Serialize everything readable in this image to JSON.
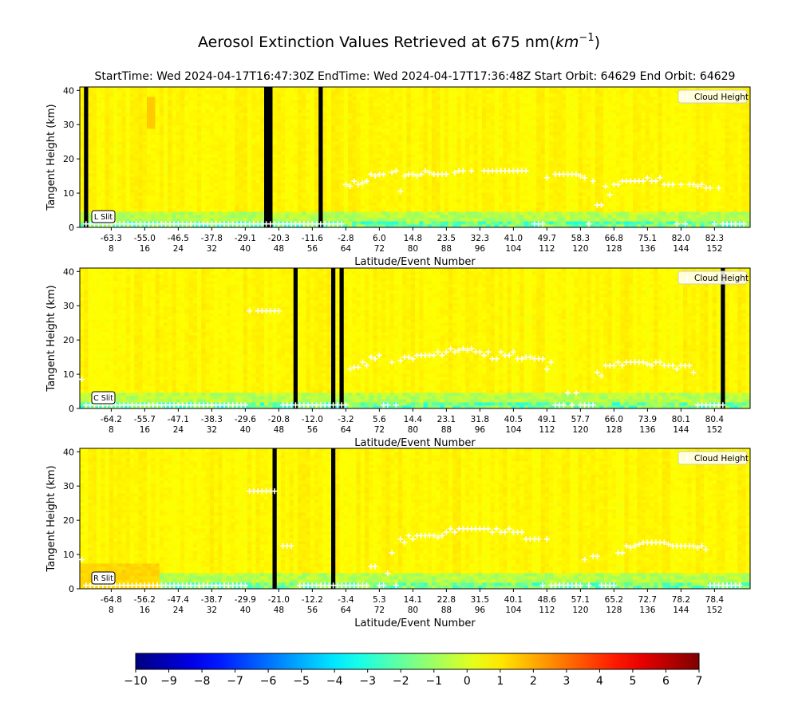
{
  "chart_data": {
    "type": "heatmap",
    "title": "Aerosol Extinction Values Retrieved at 675 nm(km⁻¹)",
    "title_main": "Aerosol Extinction Values Retrieved at 675 nm(",
    "title_unit": "km",
    "title_sup": "−1",
    "title_close": ")",
    "subtitle": "StartTime: Wed 2024-04-17T16:47:30Z  EndTime: Wed 2024-04-17T17:36:48Z  Start Orbit: 64629 End Orbit: 64629",
    "legend_label": "Cloud Height",
    "colorscale": "jet",
    "colorbar": {
      "min": -10,
      "max": 7,
      "ticks": [
        "−10",
        "−9",
        "−8",
        "−7",
        "−6",
        "−5",
        "−4",
        "−3",
        "−2",
        "−1",
        "0",
        "1",
        "2",
        "3",
        "4",
        "5",
        "6",
        "7"
      ]
    },
    "panels": [
      {
        "slit_label": "L Slit",
        "ylabel": "Tangent Height (km)",
        "xlabel": "Latitude/Event Number",
        "ylim": [
          0,
          41
        ],
        "yticks": [
          "0",
          "10",
          "20",
          "30",
          "40"
        ],
        "event_range": [
          1,
          160
        ],
        "xticks_lat": [
          "-63.3",
          "-55.0",
          "-46.5",
          "-37.8",
          "-29.1",
          "-20.3",
          "-11.6",
          "-2.8",
          "6.0",
          "14.8",
          "23.5",
          "32.3",
          "41.0",
          "49.7",
          "58.3",
          "66.8",
          "75.1",
          "82.0",
          "82.3"
        ],
        "xticks_event": [
          "8",
          "16",
          "24",
          "32",
          "40",
          "48",
          "56",
          "64",
          "72",
          "80",
          "88",
          "96",
          "104",
          "112",
          "120",
          "128",
          "136",
          "144",
          "152"
        ],
        "missing_events": [
          [
            2,
            2
          ],
          [
            45,
            46
          ],
          [
            58,
            58
          ]
        ],
        "cloud_height_events": [
          2,
          3,
          4,
          5,
          6,
          7,
          8,
          9,
          10,
          11,
          12,
          13,
          14,
          15,
          16,
          17,
          18,
          19,
          20,
          21,
          22,
          23,
          24,
          25,
          26,
          27,
          28,
          29,
          30,
          31,
          32,
          33,
          34,
          35,
          36,
          37,
          38,
          39,
          40,
          41,
          42,
          43,
          44,
          45,
          46,
          47,
          48,
          49,
          50,
          51,
          52,
          53,
          54,
          55,
          56,
          57,
          58,
          59,
          60,
          61,
          62,
          63,
          64,
          65,
          66,
          67,
          68,
          69,
          70,
          71,
          72,
          73,
          74,
          75,
          76,
          77,
          78,
          79,
          80,
          81,
          82,
          83,
          84,
          85,
          86,
          87,
          88,
          89,
          90,
          91,
          92,
          93,
          94,
          95,
          96,
          97,
          98,
          99,
          100,
          101,
          102,
          103,
          104,
          105,
          106,
          107,
          108,
          109,
          110,
          111,
          112,
          113,
          114,
          115,
          116,
          117,
          118,
          119,
          120,
          121,
          122,
          123,
          124,
          125,
          126,
          127,
          128,
          129,
          130,
          131,
          132,
          133,
          134,
          135,
          136,
          137,
          138,
          139,
          140,
          141,
          142,
          143,
          144,
          145,
          146,
          147,
          148,
          149,
          150,
          151,
          152,
          153,
          154,
          155,
          156,
          157,
          158,
          159
        ],
        "cloud_height_km": [
          1,
          1,
          1,
          1,
          1,
          1,
          1,
          1,
          1,
          1,
          1,
          1,
          1,
          1,
          1,
          1,
          1,
          1,
          1,
          1,
          1,
          1,
          1,
          1,
          1,
          1,
          1,
          1,
          1,
          1,
          1,
          1,
          1,
          1,
          1,
          1,
          1,
          1,
          1,
          1,
          1,
          1,
          1,
          1,
          1,
          1,
          1,
          1,
          1,
          1,
          1,
          1,
          1,
          1,
          1,
          1,
          1,
          1,
          1,
          1,
          1,
          1,
          12.5,
          12,
          13.5,
          12.5,
          13,
          13.5,
          15.5,
          15,
          15.5,
          15.5,
          null,
          16,
          16.5,
          10.5,
          15,
          15.5,
          15.5,
          15,
          15.5,
          16.5,
          16,
          15.5,
          15.5,
          15.5,
          15.5,
          null,
          16,
          16.5,
          16.5,
          null,
          16.5,
          null,
          null,
          16.5,
          16.5,
          16.5,
          16.5,
          16.5,
          16.5,
          16.5,
          16.5,
          16.5,
          16.5,
          16.5,
          null,
          1,
          1,
          1,
          14.5,
          null,
          15.5,
          15.5,
          15.5,
          15.5,
          15.5,
          15.5,
          15,
          14.5,
          1,
          13.5,
          6.5,
          6.5,
          12,
          9.5,
          12.5,
          12.5,
          13.5,
          13.5,
          13.5,
          13.5,
          13.5,
          13.5,
          14.5,
          13.5,
          13.5,
          14.5,
          12.5,
          12.5,
          12.5,
          1,
          12.5,
          1,
          12.5,
          12.5,
          12,
          12.5,
          11.5,
          11.5,
          1,
          11.5,
          1,
          1,
          1,
          1,
          1,
          1
        ]
      },
      {
        "slit_label": "C Slit",
        "ylabel": "Tangent Height (km)",
        "xlabel": "Latitude/Event Number",
        "ylim": [
          0,
          41
        ],
        "yticks": [
          "0",
          "10",
          "20",
          "30",
          "40"
        ],
        "event_range": [
          1,
          160
        ],
        "xticks_lat": [
          "-64.2",
          "-55.7",
          "-47.1",
          "-38.3",
          "-29.6",
          "-20.8",
          "-12.0",
          "-3.2",
          "5.6",
          "14.4",
          "23.1",
          "31.8",
          "40.5",
          "49.1",
          "57.7",
          "66.0",
          "73.9",
          "80.1",
          "80.4"
        ],
        "xticks_event": [
          "8",
          "16",
          "24",
          "32",
          "40",
          "48",
          "56",
          "64",
          "72",
          "80",
          "88",
          "96",
          "104",
          "112",
          "120",
          "128",
          "136",
          "144",
          "152"
        ],
        "missing_events": [
          [
            52,
            52
          ],
          [
            61,
            61
          ],
          [
            63,
            63
          ],
          [
            154,
            154
          ]
        ],
        "cloud_height_events": [
          1,
          2,
          3,
          4,
          5,
          6,
          7,
          8,
          9,
          10,
          11,
          12,
          13,
          14,
          15,
          16,
          17,
          18,
          19,
          20,
          21,
          22,
          23,
          24,
          25,
          26,
          27,
          28,
          29,
          30,
          31,
          32,
          33,
          34,
          35,
          36,
          37,
          38,
          39,
          40,
          41,
          42,
          43,
          44,
          45,
          46,
          47,
          48,
          49,
          50,
          51,
          52,
          53,
          54,
          55,
          56,
          57,
          58,
          59,
          60,
          61,
          62,
          63,
          64,
          65,
          66,
          67,
          68,
          69,
          70,
          71,
          72,
          73,
          74,
          75,
          76,
          77,
          78,
          79,
          80,
          81,
          82,
          83,
          84,
          85,
          86,
          87,
          88,
          89,
          90,
          91,
          92,
          93,
          94,
          95,
          96,
          97,
          98,
          99,
          100,
          101,
          102,
          103,
          104,
          105,
          106,
          107,
          108,
          109,
          110,
          111,
          112,
          113,
          114,
          115,
          116,
          117,
          118,
          119,
          120,
          121,
          122,
          123,
          124,
          125,
          126,
          127,
          128,
          129,
          130,
          131,
          132,
          133,
          134,
          135,
          136,
          137,
          138,
          139,
          140,
          141,
          142,
          143,
          144,
          145,
          146,
          147,
          148,
          149,
          150,
          151,
          152,
          153,
          154,
          155,
          156,
          157,
          158,
          159
        ],
        "cloud_height_km": [
          8.5,
          1,
          1,
          1,
          1,
          1,
          1,
          1,
          1,
          1,
          1,
          1,
          1,
          1,
          1,
          1,
          1,
          1,
          1,
          1,
          1,
          1,
          1,
          1,
          1,
          1,
          1,
          1,
          1,
          1,
          1,
          1,
          1,
          1,
          1,
          1,
          1,
          1,
          1,
          1,
          28.5,
          null,
          28.5,
          28.5,
          28.5,
          28.5,
          28.5,
          28.5,
          1,
          1,
          1,
          1,
          1,
          1,
          1,
          1,
          1,
          1,
          1,
          1,
          1,
          1,
          1,
          1,
          11.5,
          12,
          12,
          13.5,
          12.5,
          15,
          14.5,
          15.5,
          1,
          1,
          13.5,
          1,
          14,
          15,
          15,
          14.5,
          15.5,
          15.5,
          15.5,
          15.5,
          15.5,
          16.5,
          15.5,
          16.5,
          17.5,
          16.5,
          17,
          17.5,
          17,
          17.5,
          16.5,
          16.5,
          15.5,
          16.5,
          14.5,
          14.5,
          16.5,
          15.5,
          15.5,
          16.5,
          14.5,
          14.5,
          15,
          15,
          14.5,
          14.5,
          14.5,
          11.5,
          13.5,
          1,
          1,
          1,
          4.5,
          1,
          4.5,
          1,
          1,
          1,
          1,
          10.5,
          9.5,
          12.5,
          12.5,
          12.5,
          13.5,
          12.5,
          13.5,
          13.5,
          13.5,
          13.5,
          13.5,
          13,
          12.5,
          13.5,
          13.5,
          12.5,
          12.5,
          12.5,
          11.5,
          12.5,
          12.5,
          12.5,
          10.5,
          1,
          1,
          1,
          1,
          1,
          1,
          1
        ]
      },
      {
        "slit_label": "R Slit",
        "ylabel": "Tangent Height (km)",
        "xlabel": "Latitude/Event Number",
        "ylim": [
          0,
          41
        ],
        "yticks": [
          "0",
          "10",
          "20",
          "30",
          "40"
        ],
        "event_range": [
          1,
          160
        ],
        "xticks_lat": [
          "-64.8",
          "-56.2",
          "-47.4",
          "-38.7",
          "-29.9",
          "-21.0",
          "-12.2",
          "-3.4",
          "5.3",
          "14.1",
          "22.8",
          "31.5",
          "40.1",
          "48.6",
          "57.1",
          "65.2",
          "72.7",
          "78.2",
          "78.4"
        ],
        "xticks_event": [
          "8",
          "16",
          "24",
          "32",
          "40",
          "48",
          "56",
          "64",
          "72",
          "80",
          "88",
          "96",
          "104",
          "112",
          "120",
          "128",
          "136",
          "144",
          "152"
        ],
        "missing_events": [
          [
            47,
            47
          ],
          [
            61,
            61
          ]
        ],
        "cloud_height_events": [
          1,
          2,
          3,
          4,
          5,
          6,
          7,
          8,
          9,
          10,
          11,
          12,
          13,
          14,
          15,
          16,
          17,
          18,
          19,
          20,
          21,
          22,
          23,
          24,
          25,
          26,
          27,
          28,
          29,
          30,
          31,
          32,
          33,
          34,
          35,
          36,
          37,
          38,
          39,
          40,
          41,
          42,
          43,
          44,
          45,
          46,
          47,
          48,
          49,
          50,
          51,
          52,
          53,
          54,
          55,
          56,
          57,
          58,
          59,
          60,
          61,
          62,
          63,
          64,
          65,
          66,
          67,
          68,
          69,
          70,
          71,
          72,
          73,
          74,
          75,
          76,
          77,
          78,
          79,
          80,
          81,
          82,
          83,
          84,
          85,
          86,
          87,
          88,
          89,
          90,
          91,
          92,
          93,
          94,
          95,
          96,
          97,
          98,
          99,
          100,
          101,
          102,
          103,
          104,
          105,
          106,
          107,
          108,
          109,
          110,
          111,
          112,
          113,
          114,
          115,
          116,
          117,
          118,
          119,
          120,
          121,
          122,
          123,
          124,
          125,
          126,
          127,
          128,
          129,
          130,
          131,
          132,
          133,
          134,
          135,
          136,
          137,
          138,
          139,
          140,
          141,
          142,
          143,
          144,
          145,
          146,
          147,
          148,
          149,
          150,
          151,
          152,
          153,
          154,
          155,
          156,
          157,
          158,
          159
        ],
        "cloud_height_km": [
          8.5,
          1,
          1,
          1,
          1,
          1,
          1,
          1,
          1,
          1,
          1,
          1,
          1,
          1,
          1,
          1,
          1,
          1,
          1,
          1,
          1,
          1,
          1,
          1,
          1,
          1,
          1,
          1,
          1,
          1,
          1,
          1,
          1,
          1,
          1,
          1,
          1,
          1,
          1,
          1,
          28.5,
          28.5,
          28.5,
          28.5,
          28.5,
          28.5,
          28.5,
          null,
          12.5,
          12.5,
          12.5,
          null,
          1,
          1,
          1,
          1,
          1,
          1,
          1,
          1,
          1,
          1,
          1,
          1,
          1,
          1,
          1,
          1,
          1,
          6.5,
          6.5,
          1,
          1,
          4.5,
          10.5,
          1,
          14.5,
          13.5,
          15.5,
          14.5,
          15.5,
          15.5,
          15.5,
          15.5,
          15.5,
          15,
          15.5,
          16.5,
          17.5,
          16.5,
          17.5,
          17.5,
          17.5,
          17.5,
          17.5,
          17.5,
          17.5,
          17.5,
          16.5,
          17.5,
          16.5,
          16.5,
          17.5,
          16.5,
          16.5,
          16.5,
          14.5,
          14.5,
          14.5,
          14.5,
          1,
          14.5,
          1,
          1,
          1,
          1,
          1,
          1,
          1,
          1,
          8.5,
          1,
          9.5,
          9.5,
          1,
          1,
          1,
          1,
          10.5,
          10.5,
          12.5,
          12,
          12.5,
          13,
          13.5,
          13.5,
          13.5,
          13.5,
          13.5,
          13.5,
          13,
          12.5,
          12.5,
          12.5,
          12.5,
          12.5,
          12.5,
          12,
          12.5,
          11.5,
          1,
          1,
          1,
          1,
          1,
          1,
          1,
          1
        ]
      }
    ]
  }
}
